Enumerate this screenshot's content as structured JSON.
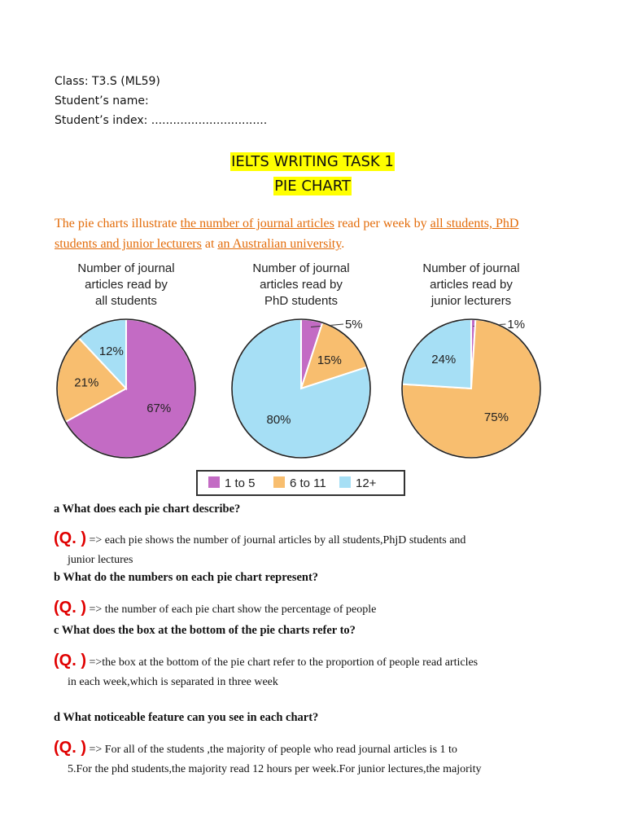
{
  "header": {
    "class_label": "Class: T3.S (ML59)",
    "name_label": "Student’s name:",
    "index_label": "Student’s index: ................................"
  },
  "titles": {
    "line1": "IELTS WRITING TASK 1",
    "line2": "PIE CHART"
  },
  "intro": {
    "p1": "The pie charts illustrate ",
    "u1": "the number of journal articles",
    "p2": " read per week by ",
    "u2": "all students, PhD students and junior lecturers",
    "p3": " at ",
    "u3": "an Australian university",
    "p4": "."
  },
  "chart_data": {
    "type": "pie",
    "colors": {
      "1 to 5": "#c36bc4",
      "6 to 11": "#f8be6f",
      "12+": "#a6dff5"
    },
    "legend": [
      "1 to 5",
      "6 to 11",
      "12+"
    ],
    "charts": [
      {
        "title": [
          "Number of journal",
          "articles read by",
          "all students"
        ],
        "slices": [
          {
            "category": "1 to 5",
            "value": 67,
            "label": "67%"
          },
          {
            "category": "6 to 11",
            "value": 21,
            "label": "21%"
          },
          {
            "category": "12+",
            "value": 12,
            "label": "12%"
          }
        ]
      },
      {
        "title": [
          "Number of journal",
          "articles read by",
          "PhD students"
        ],
        "slices": [
          {
            "category": "1 to 5",
            "value": 5,
            "label": "5%"
          },
          {
            "category": "6 to 11",
            "value": 15,
            "label": "15%"
          },
          {
            "category": "12+",
            "value": 80,
            "label": "80%"
          }
        ]
      },
      {
        "title": [
          "Number of journal",
          "articles read by",
          "junior lecturers"
        ],
        "slices": [
          {
            "category": "1 to 5",
            "value": 1,
            "label": "1%"
          },
          {
            "category": "6 to 11",
            "value": 75,
            "label": "75%"
          },
          {
            "category": "12+",
            "value": 24,
            "label": "24%"
          }
        ]
      }
    ]
  },
  "questions": {
    "a": "a What does each  pie chart describe?",
    "b": "b What do the numbers on each pie chart represent?",
    "c": "c What does the box at the bottom of the pie charts refer to?",
    "d": "d What noticeable feature can you see in each chart?"
  },
  "answers": {
    "tag": "(Q. )",
    "a_line1": " => each pie shows the number of journal articles by all students,PhjD students and",
    "a_line2": "junior lectures",
    "b_line1": " => the number of each pie chart show the percentage of people",
    "c_line1": " =>the box at the bottom of the pie chart refer to the proportion of people read articles",
    "c_line2": "in each week,which is separated in three week",
    "d_line1": " => For all of the students ,the majority of people who read journal articles is 1 to",
    "d_line2": "5.For the phd students,the majority read 12 hours per week.For junior lectures,the majority"
  }
}
